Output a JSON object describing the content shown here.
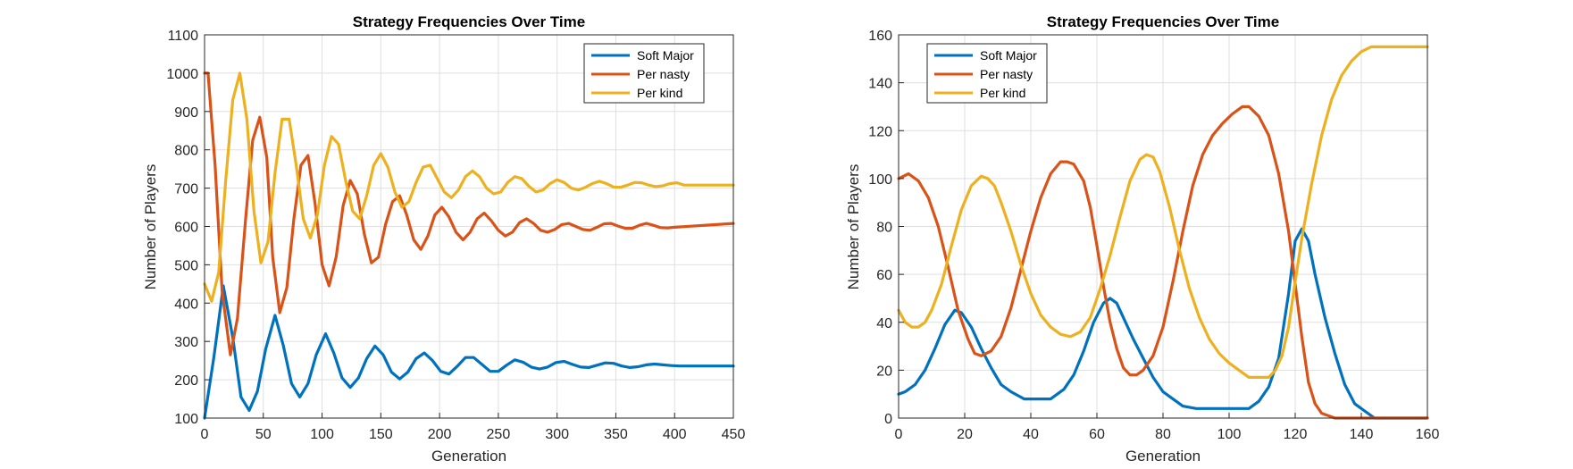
{
  "chart_data": [
    {
      "type": "line",
      "title": "Strategy Frequencies Over Time",
      "xlabel": "Generation",
      "ylabel": "Number of Players",
      "xlim": [
        0,
        450
      ],
      "ylim": [
        100,
        1100
      ],
      "xticks": [
        0,
        50,
        100,
        150,
        200,
        250,
        300,
        350,
        400,
        450
      ],
      "yticks": [
        100,
        200,
        300,
        400,
        500,
        600,
        700,
        800,
        900,
        1000,
        1100
      ],
      "grid": true,
      "legend_position": "top-right",
      "series": [
        {
          "name": "Soft Major",
          "color": "#0072BD",
          "x": [
            0,
            8,
            16,
            24,
            31,
            38,
            45,
            52,
            60,
            67,
            74,
            81,
            88,
            95,
            103,
            110,
            117,
            124,
            131,
            138,
            145,
            152,
            159,
            166,
            173,
            180,
            187,
            194,
            201,
            208,
            215,
            222,
            229,
            236,
            243,
            250,
            257,
            264,
            271,
            278,
            285,
            292,
            299,
            306,
            313,
            320,
            327,
            334,
            341,
            348,
            355,
            362,
            369,
            376,
            383,
            390,
            397,
            404,
            450
          ],
          "y": [
            100,
            260,
            445,
            310,
            155,
            120,
            170,
            280,
            368,
            290,
            190,
            155,
            190,
            265,
            320,
            270,
            205,
            180,
            205,
            255,
            288,
            265,
            220,
            202,
            220,
            255,
            270,
            250,
            222,
            215,
            235,
            258,
            258,
            240,
            222,
            222,
            238,
            252,
            246,
            233,
            228,
            233,
            245,
            248,
            240,
            233,
            232,
            238,
            244,
            243,
            236,
            232,
            234,
            239,
            241,
            239,
            237,
            236,
            236
          ]
        },
        {
          "name": "Per nasty",
          "color": "#D95319",
          "x": [
            0,
            3,
            9,
            15,
            22,
            28,
            35,
            41,
            47,
            53,
            58,
            64,
            70,
            76,
            82,
            88,
            94,
            100,
            106,
            112,
            118,
            124,
            130,
            136,
            142,
            148,
            154,
            160,
            166,
            172,
            178,
            184,
            190,
            196,
            202,
            208,
            214,
            220,
            226,
            232,
            238,
            244,
            250,
            256,
            262,
            268,
            274,
            280,
            286,
            292,
            298,
            304,
            310,
            316,
            322,
            328,
            334,
            340,
            346,
            352,
            358,
            364,
            370,
            376,
            382,
            388,
            394,
            400,
            450
          ],
          "y": [
            1000,
            1000,
            760,
            430,
            265,
            360,
            620,
            825,
            885,
            780,
            520,
            375,
            440,
            620,
            760,
            785,
            660,
            500,
            445,
            520,
            655,
            720,
            685,
            580,
            505,
            520,
            605,
            665,
            680,
            630,
            565,
            540,
            575,
            630,
            650,
            625,
            585,
            565,
            585,
            620,
            635,
            615,
            590,
            575,
            585,
            610,
            620,
            608,
            590,
            585,
            592,
            605,
            608,
            600,
            592,
            590,
            598,
            607,
            608,
            601,
            595,
            595,
            603,
            608,
            603,
            597,
            596,
            598,
            608
          ]
        },
        {
          "name": "Per kind",
          "color": "#EDB120",
          "x": [
            0,
            6,
            12,
            18,
            24,
            30,
            36,
            42,
            48,
            54,
            60,
            66,
            72,
            78,
            84,
            90,
            96,
            102,
            108,
            114,
            120,
            126,
            132,
            138,
            144,
            150,
            156,
            162,
            168,
            174,
            180,
            186,
            192,
            198,
            204,
            210,
            216,
            222,
            228,
            234,
            240,
            246,
            252,
            258,
            264,
            270,
            276,
            282,
            288,
            294,
            300,
            306,
            312,
            318,
            324,
            330,
            336,
            342,
            348,
            354,
            360,
            366,
            372,
            378,
            384,
            390,
            396,
            402,
            408,
            450
          ],
          "y": [
            450,
            405,
            480,
            720,
            930,
            1000,
            880,
            640,
            505,
            560,
            740,
            880,
            880,
            760,
            620,
            570,
            630,
            760,
            835,
            815,
            720,
            640,
            620,
            680,
            760,
            790,
            755,
            690,
            650,
            665,
            715,
            755,
            760,
            725,
            690,
            675,
            695,
            730,
            745,
            730,
            700,
            685,
            690,
            715,
            730,
            725,
            705,
            690,
            695,
            712,
            722,
            715,
            700,
            695,
            702,
            712,
            718,
            712,
            703,
            702,
            708,
            715,
            714,
            708,
            704,
            706,
            712,
            714,
            708,
            708
          ]
        }
      ]
    },
    {
      "type": "line",
      "title": "Strategy Frequencies Over Time",
      "xlabel": "Generation",
      "ylabel": "Number of Players",
      "xlim": [
        0,
        160
      ],
      "ylim": [
        0,
        160
      ],
      "xticks": [
        0,
        20,
        40,
        60,
        80,
        100,
        120,
        140,
        160
      ],
      "yticks": [
        0,
        20,
        40,
        60,
        80,
        100,
        120,
        140,
        160
      ],
      "grid": true,
      "legend_position": "top-left",
      "series": [
        {
          "name": "Soft Major",
          "color": "#0072BD",
          "x": [
            0,
            2,
            5,
            8,
            11,
            14,
            17,
            19,
            22,
            25,
            28,
            31,
            34,
            38,
            42,
            46,
            50,
            53,
            56,
            59,
            62,
            64,
            66,
            68,
            71,
            74,
            77,
            80,
            83,
            86,
            90,
            95,
            100,
            103,
            106,
            109,
            112,
            115,
            118,
            120,
            122,
            124,
            126,
            129,
            132,
            135,
            138,
            141,
            144,
            147,
            150,
            155,
            160
          ],
          "y": [
            10,
            11,
            14,
            20,
            29,
            39,
            45,
            44,
            38,
            29,
            21,
            14,
            11,
            8,
            8,
            8,
            12,
            18,
            28,
            40,
            48,
            50,
            48,
            42,
            33,
            25,
            17,
            11,
            8,
            5,
            4,
            4,
            4,
            4,
            4,
            7,
            13,
            25,
            52,
            74,
            79,
            74,
            60,
            42,
            27,
            14,
            6,
            3,
            0,
            0,
            0,
            0,
            0
          ]
        },
        {
          "name": "Per nasty",
          "color": "#D95319",
          "x": [
            0,
            3,
            6,
            9,
            12,
            15,
            18,
            21,
            23,
            25,
            28,
            31,
            34,
            37,
            40,
            43,
            46,
            49,
            51,
            53,
            56,
            58,
            60,
            62,
            64,
            66,
            68,
            70,
            72,
            74,
            77,
            80,
            83,
            86,
            89,
            92,
            95,
            98,
            101,
            104,
            106,
            109,
            112,
            115,
            118,
            120,
            122,
            124,
            126,
            128,
            132,
            140,
            150,
            160
          ],
          "y": [
            100,
            102,
            99,
            92,
            80,
            63,
            45,
            33,
            27,
            26,
            28,
            34,
            46,
            62,
            78,
            92,
            102,
            107,
            107,
            106,
            99,
            88,
            72,
            55,
            40,
            29,
            21,
            18,
            18,
            20,
            26,
            38,
            57,
            78,
            97,
            110,
            118,
            123,
            127,
            130,
            130,
            126,
            118,
            102,
            78,
            56,
            34,
            15,
            6,
            2,
            0,
            0,
            0,
            0
          ]
        },
        {
          "name": "Per kind",
          "color": "#EDB120",
          "x": [
            0,
            2,
            4,
            6,
            8,
            10,
            13,
            16,
            19,
            22,
            25,
            27,
            29,
            31,
            34,
            37,
            40,
            43,
            46,
            49,
            52,
            55,
            58,
            61,
            64,
            67,
            70,
            73,
            75,
            77,
            79,
            82,
            85,
            88,
            91,
            94,
            97,
            100,
            103,
            106,
            108,
            110,
            112,
            114,
            116,
            118,
            120,
            122,
            125,
            128,
            131,
            134,
            137,
            140,
            143,
            146,
            150,
            160
          ],
          "y": [
            45,
            40,
            38,
            38,
            40,
            45,
            56,
            72,
            87,
            97,
            101,
            100,
            97,
            90,
            78,
            64,
            52,
            43,
            38,
            35,
            34,
            36,
            42,
            54,
            68,
            84,
            99,
            108,
            110,
            109,
            103,
            88,
            70,
            54,
            42,
            33,
            27,
            23,
            20,
            17,
            17,
            17,
            17,
            20,
            26,
            38,
            57,
            75,
            98,
            118,
            133,
            143,
            149,
            153,
            155,
            155,
            155,
            155
          ]
        }
      ]
    }
  ]
}
